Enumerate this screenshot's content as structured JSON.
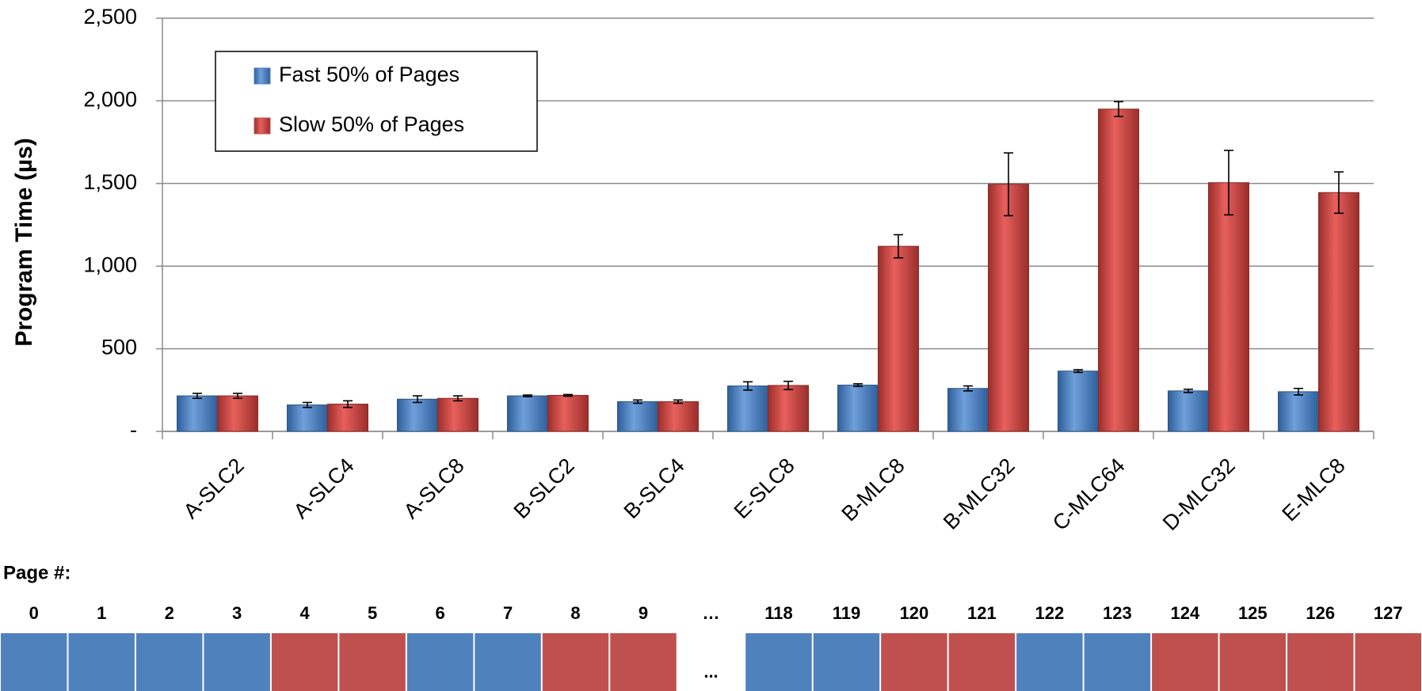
{
  "chart_data": {
    "type": "bar",
    "y_label": "Program Time (µs)",
    "categories": [
      "A-SLC2",
      "A-SLC4",
      "A-SLC8",
      "B-SLC2",
      "B-SLC4",
      "E-SLC8",
      "B-MLC8",
      "B-MLC32",
      "C-MLC64",
      "D-MLC32",
      "E-MLC8"
    ],
    "series": [
      {
        "name": "Fast 50% of Pages",
        "color": "#4f81bd",
        "values": [
          215,
          160,
          195,
          215,
          180,
          275,
          280,
          260,
          365,
          245,
          240
        ],
        "errors": [
          15,
          15,
          20,
          5,
          10,
          25,
          8,
          15,
          8,
          10,
          20
        ]
      },
      {
        "name": "Slow 50% of Pages",
        "color": "#c0504d",
        "values": [
          215,
          165,
          200,
          218,
          180,
          278,
          1120,
          1495,
          1950,
          1505,
          1445
        ],
        "errors": [
          15,
          20,
          15,
          5,
          10,
          25,
          70,
          190,
          45,
          195,
          125
        ]
      }
    ],
    "ylim": [
      0,
      2500
    ],
    "yticks": [
      {
        "value": 0,
        "label": "-"
      },
      500,
      {
        "value": 1000,
        "label": "1,000"
      },
      {
        "value": 1500,
        "label": "1,500"
      },
      {
        "value": 2000,
        "label": "2,000"
      },
      {
        "value": 2500,
        "label": "2,500"
      }
    ],
    "grid": true,
    "legend": "upper left"
  },
  "page_strip": {
    "label": "Page #:",
    "pages": [
      {
        "label": "0",
        "color": "#4f81bd"
      },
      {
        "label": "1",
        "color": "#4f81bd"
      },
      {
        "label": "2",
        "color": "#4f81bd"
      },
      {
        "label": "3",
        "color": "#4f81bd"
      },
      {
        "label": "4",
        "color": "#c0504d"
      },
      {
        "label": "5",
        "color": "#c0504d"
      },
      {
        "label": "6",
        "color": "#4f81bd"
      },
      {
        "label": "7",
        "color": "#4f81bd"
      },
      {
        "label": "8",
        "color": "#c0504d"
      },
      {
        "label": "9",
        "color": "#c0504d"
      },
      {
        "label": "…",
        "text": "..."
      },
      {
        "label": "118",
        "color": "#4f81bd"
      },
      {
        "label": "119",
        "color": "#4f81bd"
      },
      {
        "label": "120",
        "color": "#c0504d"
      },
      {
        "label": "121",
        "color": "#c0504d"
      },
      {
        "label": "122",
        "color": "#4f81bd"
      },
      {
        "label": "123",
        "color": "#4f81bd"
      },
      {
        "label": "124",
        "color": "#c0504d"
      },
      {
        "label": "125",
        "color": "#c0504d"
      },
      {
        "label": "126",
        "color": "#c0504d"
      },
      {
        "label": "127",
        "color": "#c0504d"
      }
    ]
  }
}
